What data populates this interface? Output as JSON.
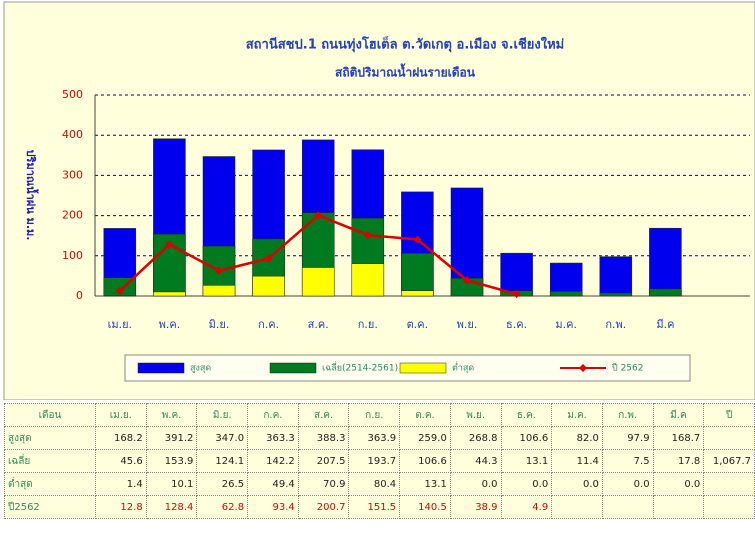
{
  "chart_data": {
    "type": "bar",
    "title": "สถานีสชป.1 ถนนทุ่งโฮเต็ล ต.วัดเกตุ อ.เมือง จ.เชียงใหม่",
    "subtitle": "สถิติปริมาณน้ำฝนรายเดือน",
    "y_label": "ปริมาณน้ำฝน ม.ม.",
    "categories": [
      "เม.ย.",
      "พ.ค.",
      "มิ.ย.",
      "ก.ค.",
      "ส.ค.",
      "ก.ย.",
      "ต.ค.",
      "พ.ย.",
      "ธ.ค.",
      "ม.ค.",
      "ก.พ.",
      "มี.ค"
    ],
    "series": [
      {
        "name": "สูงสุด",
        "color": "#0000ee",
        "values": [
          168.2,
          391.2,
          347.0,
          363.3,
          388.3,
          363.9,
          259.0,
          268.8,
          106.6,
          82.0,
          97.9,
          168.7
        ]
      },
      {
        "name": "เฉลี่ย(2514-2561)",
        "color": "#007a1f",
        "values": [
          45.6,
          153.9,
          124.1,
          142.2,
          207.5,
          193.7,
          106.6,
          44.3,
          13.1,
          11.4,
          7.5,
          17.8
        ]
      },
      {
        "name": "ต่ำสุด",
        "color": "#ffff00",
        "values": [
          1.4,
          10.1,
          26.5,
          49.4,
          70.9,
          80.4,
          13.1,
          0.0,
          0.0,
          0.0,
          0.0,
          0.0
        ]
      },
      {
        "name": "ปี 2562",
        "color": "#dd0000",
        "type": "line",
        "values": [
          12.8,
          128.4,
          62.8,
          93.4,
          200.7,
          151.5,
          140.5,
          38.9,
          4.9,
          null,
          null,
          null
        ]
      }
    ],
    "ylim": [
      0,
      500
    ],
    "yticks": [
      0,
      100,
      200,
      300,
      400,
      500
    ],
    "grid": true
  },
  "table": {
    "header": [
      "เดือน",
      "เม.ย.",
      "พ.ค.",
      "มิ.ย.",
      "ก.ค.",
      "ส.ค.",
      "ก.ย.",
      "ต.ค.",
      "พ.ย.",
      "ธ.ค.",
      "ม.ค.",
      "ก.พ.",
      "มี.ค",
      "ปี"
    ],
    "rows": [
      [
        "สูงสุด",
        "168.2",
        "391.2",
        "347.0",
        "363.3",
        "388.3",
        "363.9",
        "259.0",
        "268.8",
        "106.6",
        "82.0",
        "97.9",
        "168.7",
        null
      ],
      [
        "เฉลี่ย",
        "45.6",
        "153.9",
        "124.1",
        "142.2",
        "207.5",
        "193.7",
        "106.6",
        "44.3",
        "13.1",
        "11.4",
        "7.5",
        "17.8",
        "1,067.7"
      ],
      [
        "ต่ำสุด",
        "1.4",
        "10.1",
        "26.5",
        "49.4",
        "70.9",
        "80.4",
        "13.1",
        "0.0",
        "0.0",
        "0.0",
        "0.0",
        "0.0",
        null
      ],
      [
        "ปี2562",
        "12.8",
        "128.4",
        "62.8",
        "93.4",
        "200.7",
        "151.5",
        "140.5",
        "38.9",
        "4.9",
        null,
        null,
        null,
        null
      ]
    ]
  }
}
